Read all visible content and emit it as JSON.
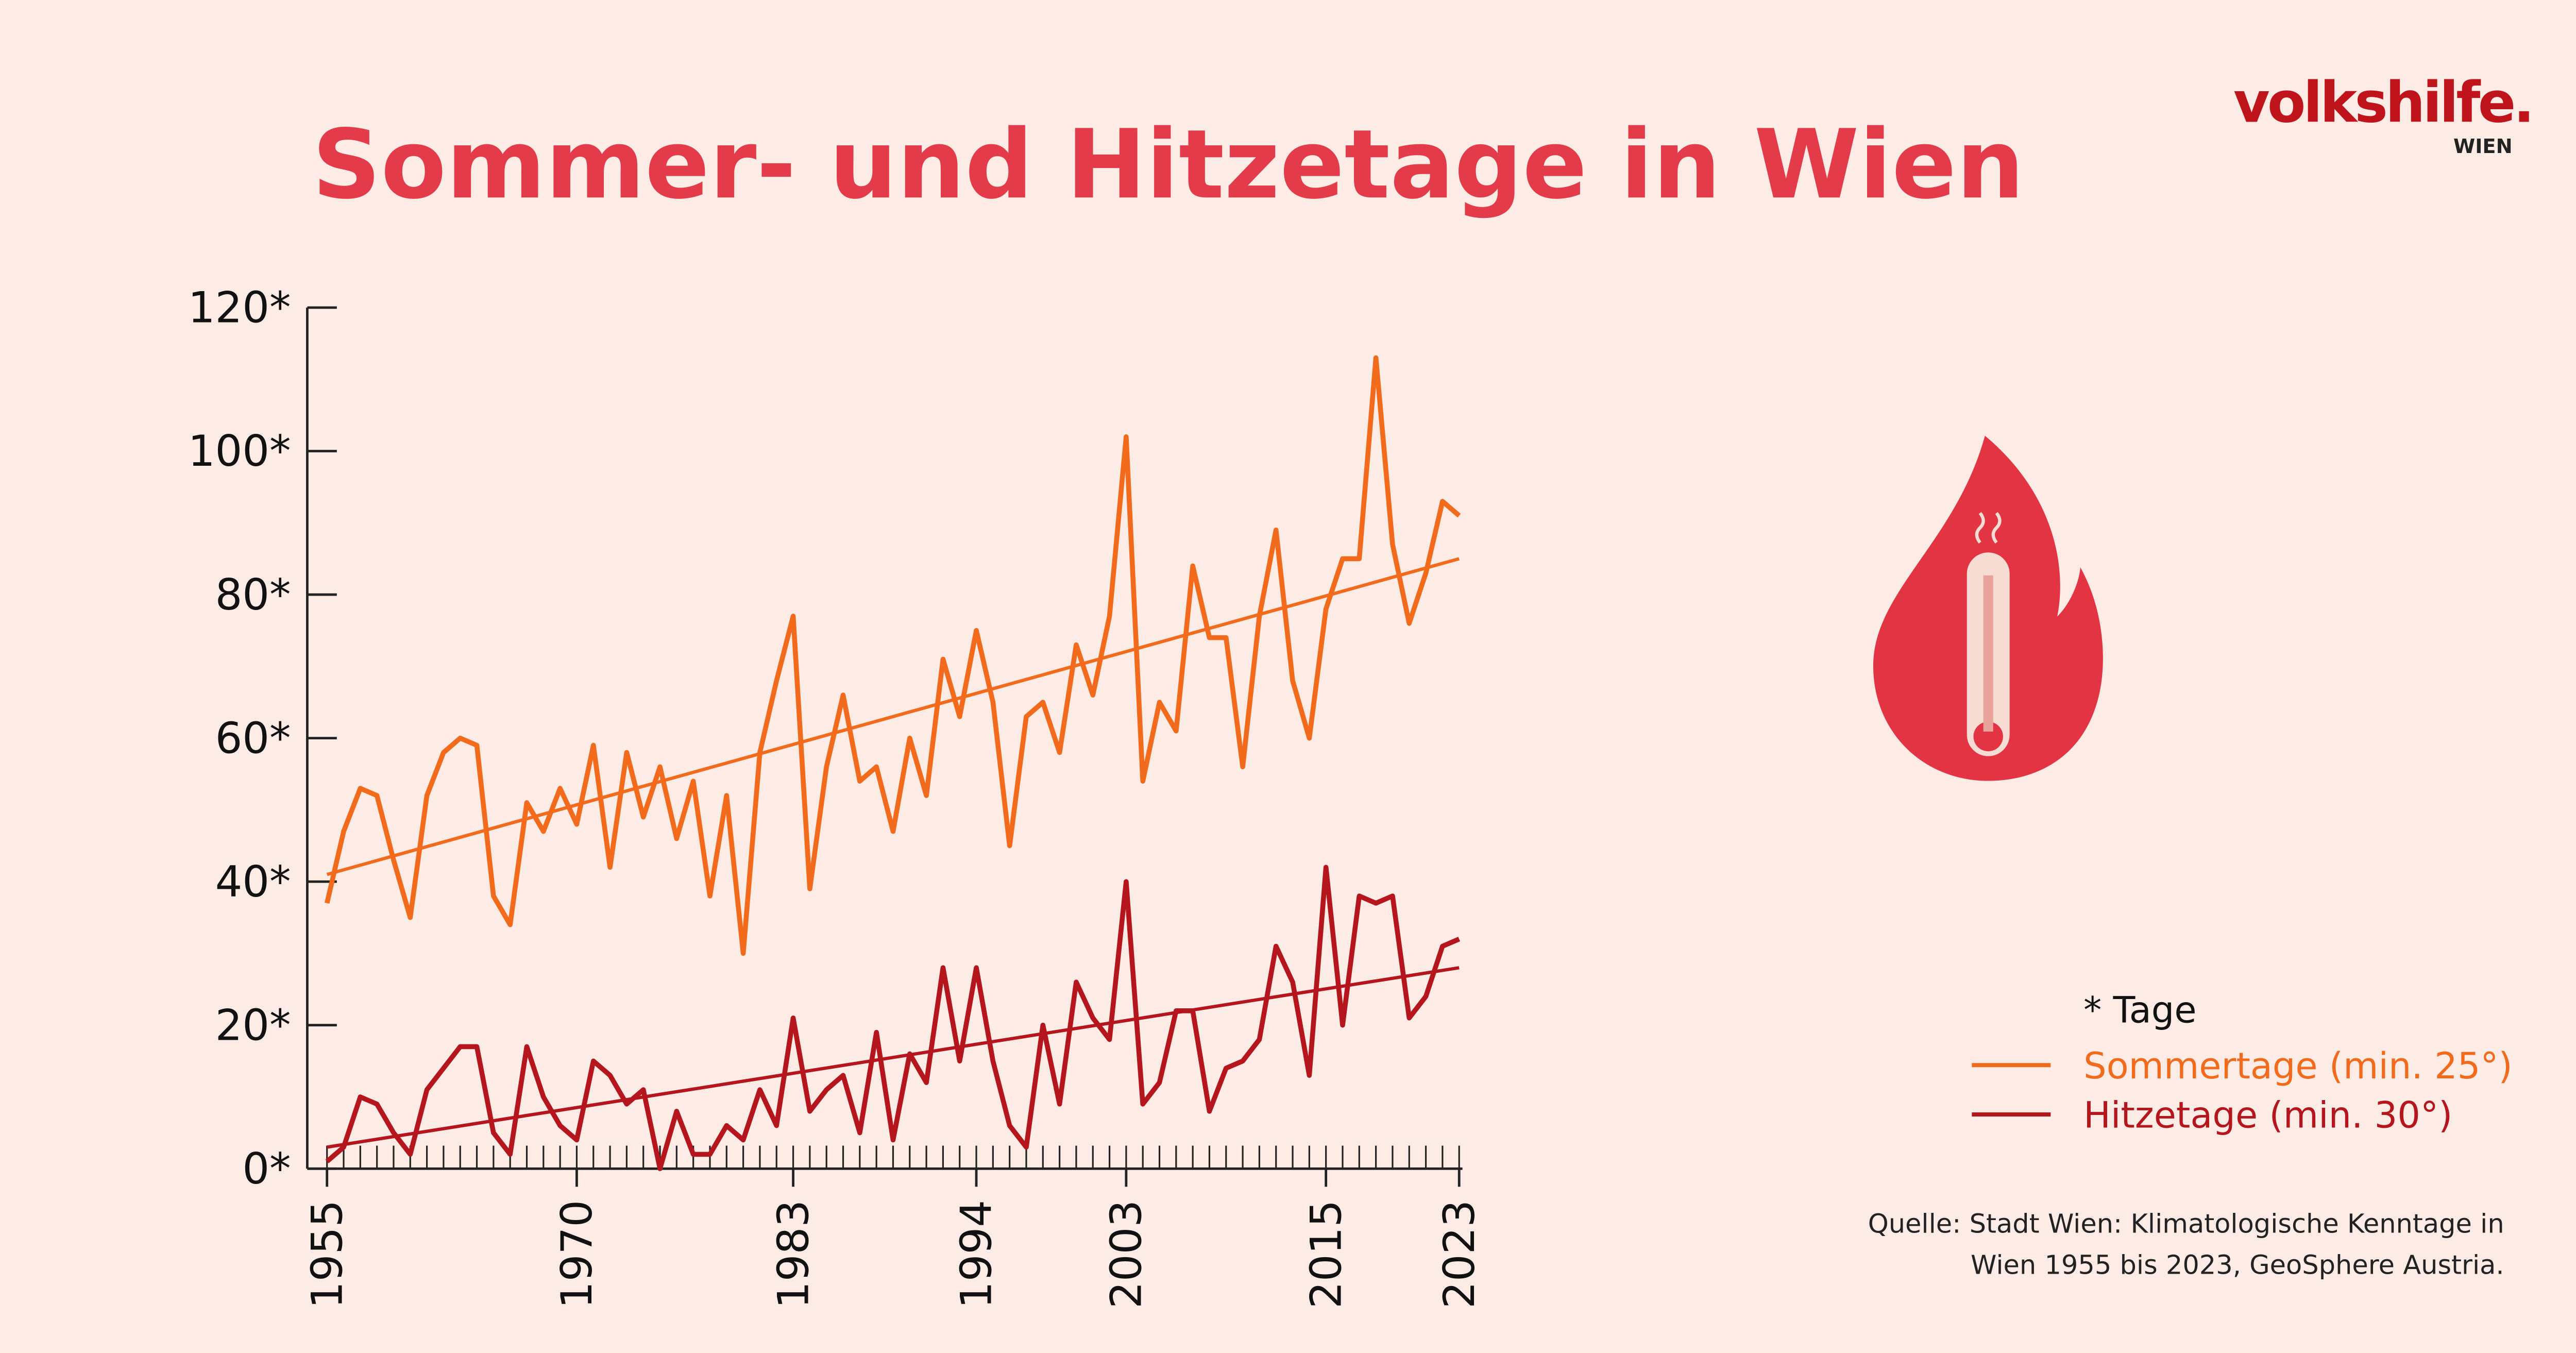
{
  "chart_data": {
    "type": "line",
    "title": "Sommer- und Hitzetage in Wien",
    "logo": "volkshilfe.",
    "logo_sub": "WIEN",
    "note": "* Tage",
    "source": [
      "Quelle: Stadt Wien: Klimatologische Kenntage in",
      "Wien 1955 bis 2023, GeoSphere Austria."
    ],
    "x": [
      1955,
      1956,
      1957,
      1958,
      1959,
      1960,
      1961,
      1962,
      1963,
      1964,
      1965,
      1966,
      1967,
      1968,
      1969,
      1970,
      1971,
      1972,
      1973,
      1974,
      1975,
      1976,
      1977,
      1978,
      1979,
      1980,
      1981,
      1982,
      1983,
      1984,
      1985,
      1986,
      1987,
      1988,
      1989,
      1990,
      1991,
      1992,
      1993,
      1994,
      1995,
      1996,
      1997,
      1998,
      1999,
      2000,
      2001,
      2002,
      2003,
      2004,
      2005,
      2006,
      2007,
      2008,
      2009,
      2010,
      2011,
      2012,
      2013,
      2014,
      2015,
      2016,
      2017,
      2018,
      2019,
      2020,
      2021,
      2022,
      2023
    ],
    "series": [
      {
        "name": "Sommertage (min. 25°)",
        "color": "#f26b1d",
        "values": [
          37,
          47,
          53,
          52,
          43,
          35,
          52,
          58,
          60,
          59,
          38,
          34,
          51,
          47,
          53,
          48,
          59,
          42,
          58,
          49,
          56,
          46,
          54,
          38,
          52,
          30,
          58,
          68,
          77,
          39,
          56,
          66,
          54,
          56,
          47,
          60,
          52,
          71,
          63,
          75,
          65,
          45,
          63,
          65,
          58,
          73,
          66,
          77,
          102,
          54,
          65,
          61,
          84,
          74,
          74,
          56,
          77,
          89,
          68,
          60,
          78,
          85,
          85,
          113,
          87,
          76,
          83,
          93,
          91
        ]
      },
      {
        "name": "Hitzetage (min. 30°)",
        "color": "#b5161e",
        "values": [
          1,
          3,
          10,
          9,
          5,
          2,
          11,
          14,
          17,
          17,
          5,
          2,
          17,
          10,
          6,
          4,
          15,
          13,
          9,
          11,
          0,
          8,
          2,
          2,
          6,
          4,
          11,
          6,
          21,
          8,
          11,
          13,
          5,
          19,
          4,
          16,
          12,
          28,
          15,
          28,
          15,
          6,
          3,
          20,
          9,
          26,
          21,
          18,
          40,
          9,
          12,
          22,
          22,
          8,
          14,
          15,
          18,
          31,
          26,
          13,
          42,
          20,
          38,
          37,
          38,
          21,
          24,
          31,
          32
        ]
      }
    ],
    "trendlines": [
      {
        "color": "#f26b1d",
        "x": [
          1955,
          2023
        ],
        "values": [
          41,
          85
        ]
      },
      {
        "color": "#b5161e",
        "x": [
          1955,
          2023
        ],
        "values": [
          3,
          28
        ]
      }
    ],
    "xlim": [
      1955,
      2023
    ],
    "xticks": [
      1955,
      1970,
      1983,
      1994,
      2003,
      2015,
      2023
    ],
    "ylim": [
      0,
      120
    ],
    "yticks": [
      {
        "value": 0,
        "label": "0*"
      },
      {
        "value": 20,
        "label": "20*"
      },
      {
        "value": 40,
        "label": "40*"
      },
      {
        "value": 60,
        "label": "60*"
      },
      {
        "value": 80,
        "label": "80*"
      },
      {
        "value": 100,
        "label": "100*"
      },
      {
        "value": 120,
        "label": "120*"
      }
    ]
  }
}
